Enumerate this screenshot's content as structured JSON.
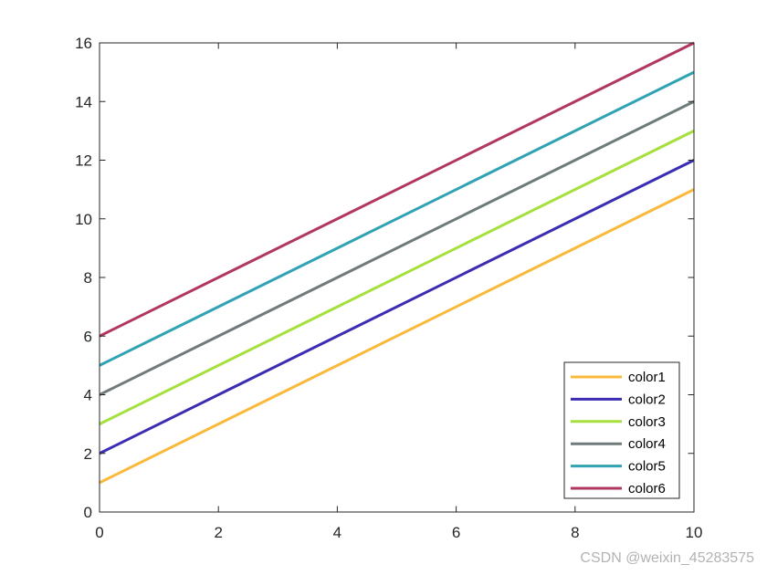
{
  "chart_data": {
    "type": "line",
    "title": "",
    "xlabel": "",
    "ylabel": "",
    "x": [
      0,
      10
    ],
    "xlim": [
      0,
      10
    ],
    "ylim": [
      0,
      16
    ],
    "xticks": [
      "0",
      "2",
      "4",
      "6",
      "8",
      "10"
    ],
    "yticks": [
      "0",
      "2",
      "4",
      "6",
      "8",
      "10",
      "12",
      "14",
      "16"
    ],
    "grid": false,
    "legend_position": "bottom-right",
    "series": [
      {
        "name": "color1",
        "values": [
          1,
          11
        ],
        "color": "#f9b93a"
      },
      {
        "name": "color2",
        "values": [
          2,
          12
        ],
        "color": "#3b2db3"
      },
      {
        "name": "color3",
        "values": [
          3,
          13
        ],
        "color": "#a5e03c"
      },
      {
        "name": "color4",
        "values": [
          4,
          14
        ],
        "color": "#6f7a7a"
      },
      {
        "name": "color5",
        "values": [
          5,
          15
        ],
        "color": "#2fa3b3"
      },
      {
        "name": "color6",
        "values": [
          6,
          16
        ],
        "color": "#b23760"
      }
    ]
  },
  "watermark": "CSDN @weixin_45283575"
}
